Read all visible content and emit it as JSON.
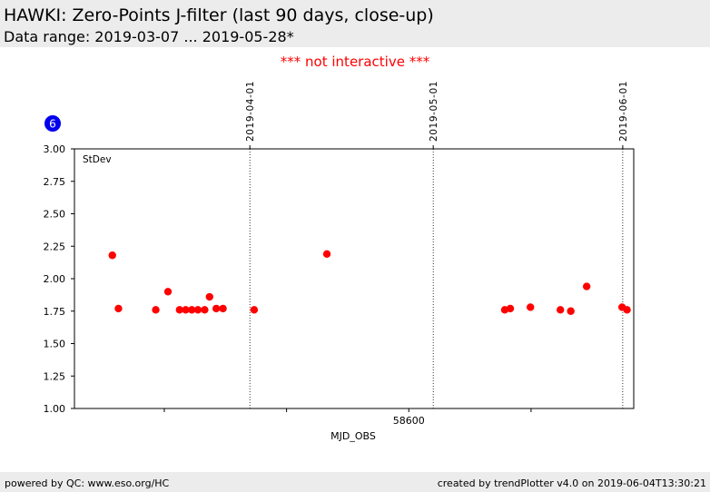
{
  "header": {
    "title": "HAWKI: Zero-Points J-filter (last 90 days, close-up)",
    "subtitle": "Data range: 2019-03-07 ... 2019-05-28*"
  },
  "notice": "*** not interactive ***",
  "footer": {
    "left": "powered by QC: www.eso.org/HC",
    "right": "created by trendPlotter v4.0 on 2019-06-04T13:30:21"
  },
  "badge": {
    "label": "6",
    "color": "#0000ee"
  },
  "colors": {
    "points": "#ff0000",
    "notice": "#ff0000",
    "header_bg": "#ececec"
  },
  "chart_data": {
    "type": "scatter",
    "panel_label": "StDev",
    "xlabel": "MJD_OBS",
    "ylabel": "",
    "xlim": [
      58545.3,
      58636.8
    ],
    "ylim": [
      1.0,
      3.0
    ],
    "yticks": [
      1.0,
      1.25,
      1.5,
      1.75,
      2.0,
      2.25,
      2.5,
      2.75,
      3.0
    ],
    "ytick_labels": [
      "1.00",
      "1.25",
      "1.50",
      "1.75",
      "2.00",
      "2.25",
      "2.50",
      "2.75",
      "3.00"
    ],
    "xticks": [
      58560,
      58580,
      58600,
      58620,
      58640
    ],
    "xtick_labels": [
      "",
      "",
      "58600",
      "",
      ""
    ],
    "date_markers": [
      {
        "date": "2019-04-01",
        "mjd": 58574
      },
      {
        "date": "2019-05-01",
        "mjd": 58604
      },
      {
        "date": "2019-06-01",
        "mjd": 58635
      }
    ],
    "grid": false,
    "series": [
      {
        "marker": "circle",
        "color": "#ff0000",
        "points": [
          {
            "x": 58551.5,
            "y": 2.18
          },
          {
            "x": 58552.5,
            "y": 1.77
          },
          {
            "x": 58558.6,
            "y": 1.76
          },
          {
            "x": 58560.6,
            "y": 1.9
          },
          {
            "x": 58562.5,
            "y": 1.76
          },
          {
            "x": 58563.5,
            "y": 1.76
          },
          {
            "x": 58564.5,
            "y": 1.76
          },
          {
            "x": 58565.5,
            "y": 1.76
          },
          {
            "x": 58566.6,
            "y": 1.76
          },
          {
            "x": 58567.4,
            "y": 1.86
          },
          {
            "x": 58568.5,
            "y": 1.77
          },
          {
            "x": 58569.6,
            "y": 1.77
          },
          {
            "x": 58574.7,
            "y": 1.76
          },
          {
            "x": 58586.6,
            "y": 2.19
          },
          {
            "x": 58615.7,
            "y": 1.76
          },
          {
            "x": 58616.6,
            "y": 1.77
          },
          {
            "x": 58619.9,
            "y": 1.78
          },
          {
            "x": 58624.8,
            "y": 1.76
          },
          {
            "x": 58626.5,
            "y": 1.75
          },
          {
            "x": 58629.1,
            "y": 1.94
          },
          {
            "x": 58634.9,
            "y": 1.78
          },
          {
            "x": 58635.7,
            "y": 1.76
          }
        ]
      }
    ]
  }
}
